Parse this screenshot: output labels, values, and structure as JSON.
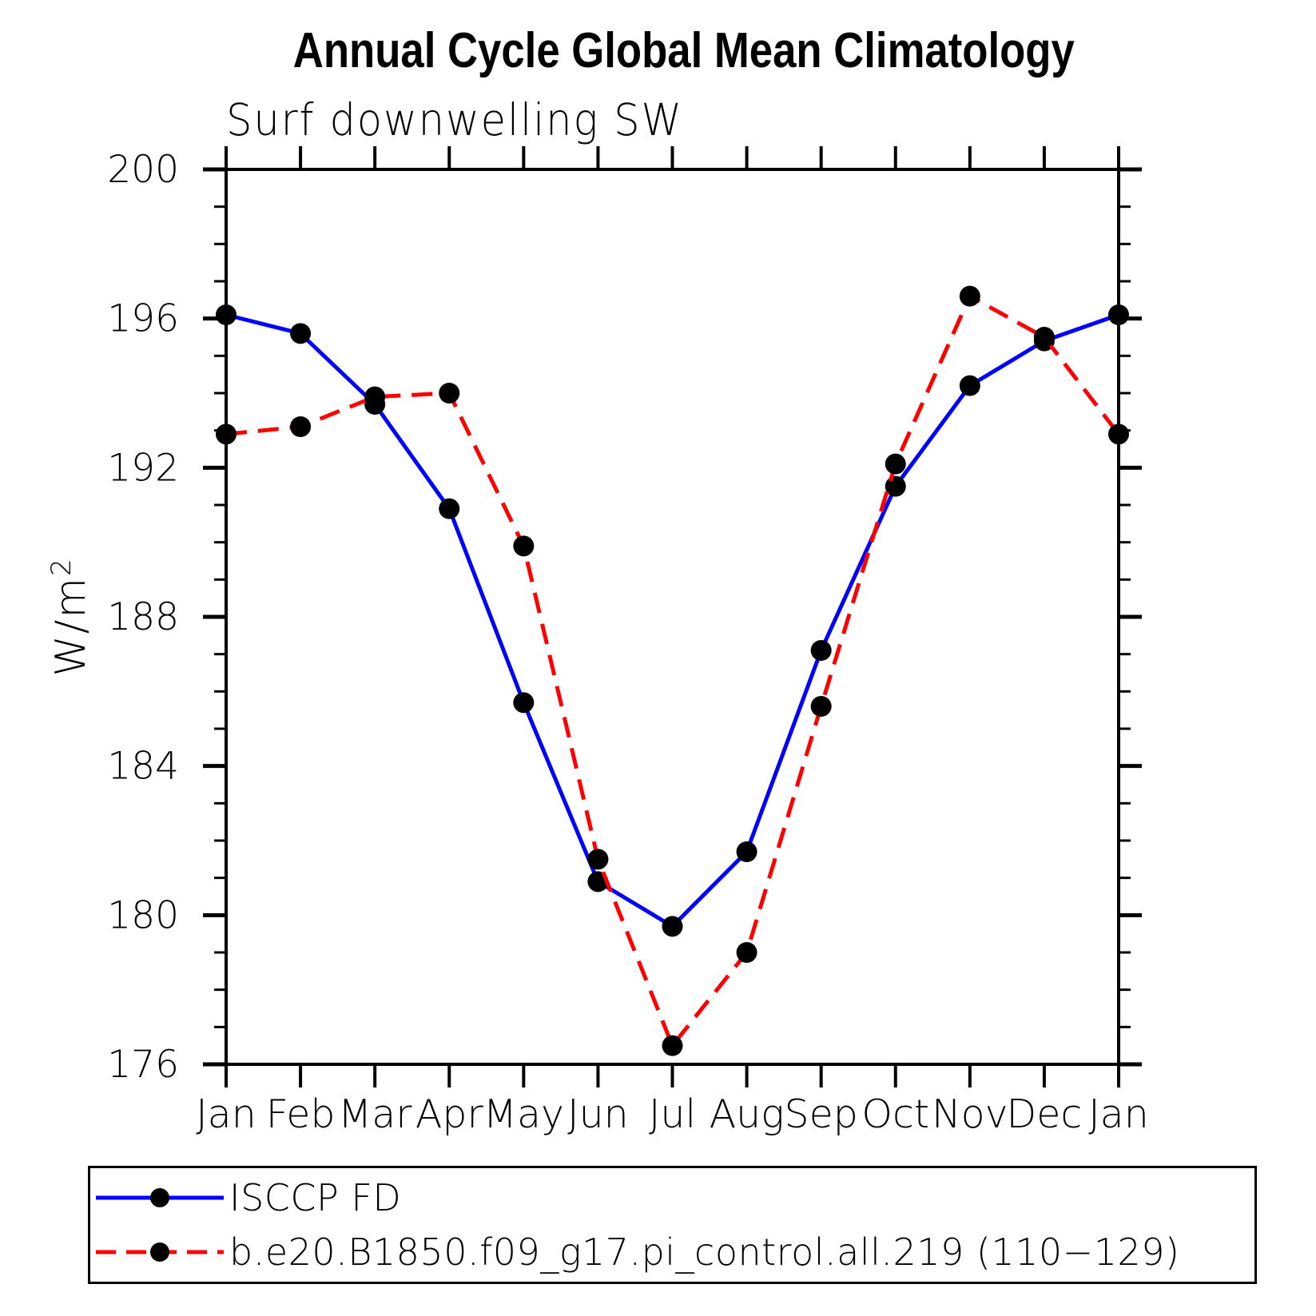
{
  "chart_data": {
    "type": "line",
    "title": "Annual Cycle Global Mean Climatology",
    "subtitle": "Surf downwelling SW",
    "ylabel": "W/m²",
    "ylabel_base": "W/m",
    "ylabel_exponent": "2",
    "x_categories": [
      "Jan",
      "Feb",
      "Mar",
      "Apr",
      "May",
      "Jun",
      "Jul",
      "Aug",
      "Sep",
      "Oct",
      "Nov",
      "Dec",
      "Jan"
    ],
    "ylim": [
      176,
      200
    ],
    "y_major_tick_step": 4,
    "y_minor_tick_step": 1,
    "y_tick_labels": [
      "176",
      "180",
      "184",
      "188",
      "192",
      "196",
      "200"
    ],
    "grid": false,
    "legend_position": "bottom-left",
    "axis_color": "#000000",
    "background_color": "#ffffff",
    "series": [
      {
        "name": "ISCCP FD",
        "color": "#0000ff",
        "line_style": "solid",
        "marker": "circle",
        "marker_color": "#000000",
        "values": [
          196.1,
          195.6,
          193.7,
          190.9,
          185.7,
          180.9,
          179.7,
          181.7,
          187.1,
          191.5,
          194.2,
          195.4,
          196.1
        ]
      },
      {
        "name": "b.e20.B1850.f09_g17.pi_control.all.219 (110−129)",
        "color": "#ff0000",
        "line_style": "dashed",
        "marker": "circle",
        "marker_color": "#000000",
        "values": [
          192.9,
          193.1,
          193.9,
          194.0,
          189.9,
          181.5,
          176.5,
          179.0,
          185.6,
          192.1,
          196.6,
          195.5,
          192.9
        ]
      }
    ]
  }
}
